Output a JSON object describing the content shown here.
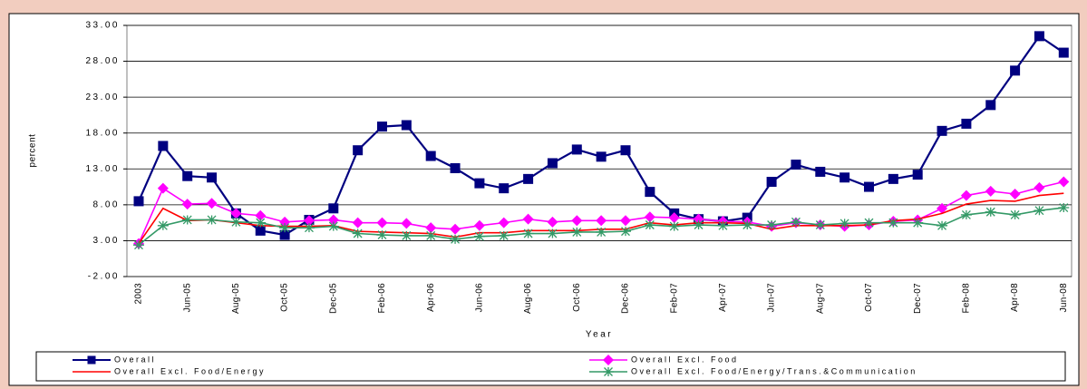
{
  "chart_data": {
    "type": "line",
    "y_label": "percent",
    "x_label": "Year",
    "categories": [
      "2003",
      null,
      "Jun-05",
      null,
      "Aug-05",
      null,
      "Oct-05",
      null,
      "Dec-05",
      null,
      "Feb-06",
      null,
      "Apr-06",
      null,
      "Jun-06",
      null,
      "Aug-06",
      null,
      "Oct-06",
      null,
      "Dec-06",
      null,
      "Feb-07",
      null,
      "Apr-07",
      null,
      "Jun-07",
      null,
      "Aug-07",
      null,
      "Oct-07",
      null,
      "Dec-07",
      null,
      "Feb-08",
      null,
      "Apr-08",
      null,
      "Jun-08"
    ],
    "ylim": [
      -2,
      33
    ],
    "yticks": [
      {
        "value": -2,
        "label": "-2.00"
      },
      {
        "value": 3,
        "label": "3.00"
      },
      {
        "value": 8,
        "label": "8.00"
      },
      {
        "value": 13,
        "label": "13.00"
      },
      {
        "value": 18,
        "label": "18.00"
      },
      {
        "value": 23,
        "label": "23.00"
      },
      {
        "value": 28,
        "label": "28.00"
      },
      {
        "value": 33,
        "label": "33.00"
      }
    ],
    "grid": true,
    "legend": "bottom",
    "series": [
      {
        "name": "Overall",
        "color": "#000080",
        "marker": "square",
        "values": [
          8.5,
          16.2,
          12.0,
          11.8,
          6.8,
          4.4,
          3.8,
          5.9,
          7.5,
          15.6,
          18.9,
          19.1,
          14.8,
          13.1,
          11.0,
          10.3,
          11.6,
          13.8,
          15.7,
          14.7,
          15.6,
          9.8,
          6.8,
          6.0,
          5.7,
          6.2,
          11.2,
          13.6,
          12.6,
          11.8,
          10.5,
          11.6,
          12.2,
          18.3,
          19.3,
          21.9,
          26.7,
          31.5,
          29.2
        ]
      },
      {
        "name": "Overall Excl. Food",
        "color": "#ff00ff",
        "marker": "diamond",
        "values": [
          2.6,
          10.3,
          8.1,
          8.2,
          6.8,
          6.5,
          5.6,
          5.8,
          5.9,
          5.5,
          5.5,
          5.4,
          4.8,
          4.6,
          5.1,
          5.5,
          6.0,
          5.6,
          5.8,
          5.8,
          5.8,
          6.3,
          6.2,
          6.0,
          5.7,
          5.6,
          5.0,
          5.5,
          5.2,
          5.0,
          5.2,
          5.7,
          5.9,
          7.5,
          9.3,
          9.9,
          9.5,
          10.4,
          11.2
        ]
      },
      {
        "name": "Overall Excl. Food/Energy",
        "color": "#ff0000",
        "marker": "none",
        "values": [
          2.6,
          7.5,
          5.8,
          5.9,
          5.5,
          5.1,
          5.0,
          5.0,
          5.1,
          4.3,
          4.2,
          4.1,
          4.0,
          3.5,
          4.1,
          4.1,
          4.4,
          4.4,
          4.4,
          4.6,
          4.6,
          5.5,
          5.2,
          5.5,
          5.5,
          5.4,
          4.6,
          5.1,
          5.1,
          5.1,
          5.2,
          5.8,
          6.0,
          6.8,
          8.1,
          8.6,
          8.5,
          9.3,
          9.6
        ]
      },
      {
        "name": "Overall Excl. Food/Energy/Trans.&Communication",
        "color": "#339966",
        "marker": "star",
        "values": [
          2.4,
          5.1,
          5.9,
          5.9,
          5.6,
          5.5,
          4.8,
          4.8,
          5.0,
          4.0,
          3.8,
          3.7,
          3.7,
          3.2,
          3.6,
          3.7,
          4.0,
          4.0,
          4.2,
          4.2,
          4.3,
          5.2,
          5.0,
          5.2,
          5.1,
          5.2,
          5.2,
          5.6,
          5.2,
          5.4,
          5.5,
          5.5,
          5.5,
          5.1,
          6.6,
          7.0,
          6.6,
          7.2,
          7.6
        ]
      }
    ]
  }
}
